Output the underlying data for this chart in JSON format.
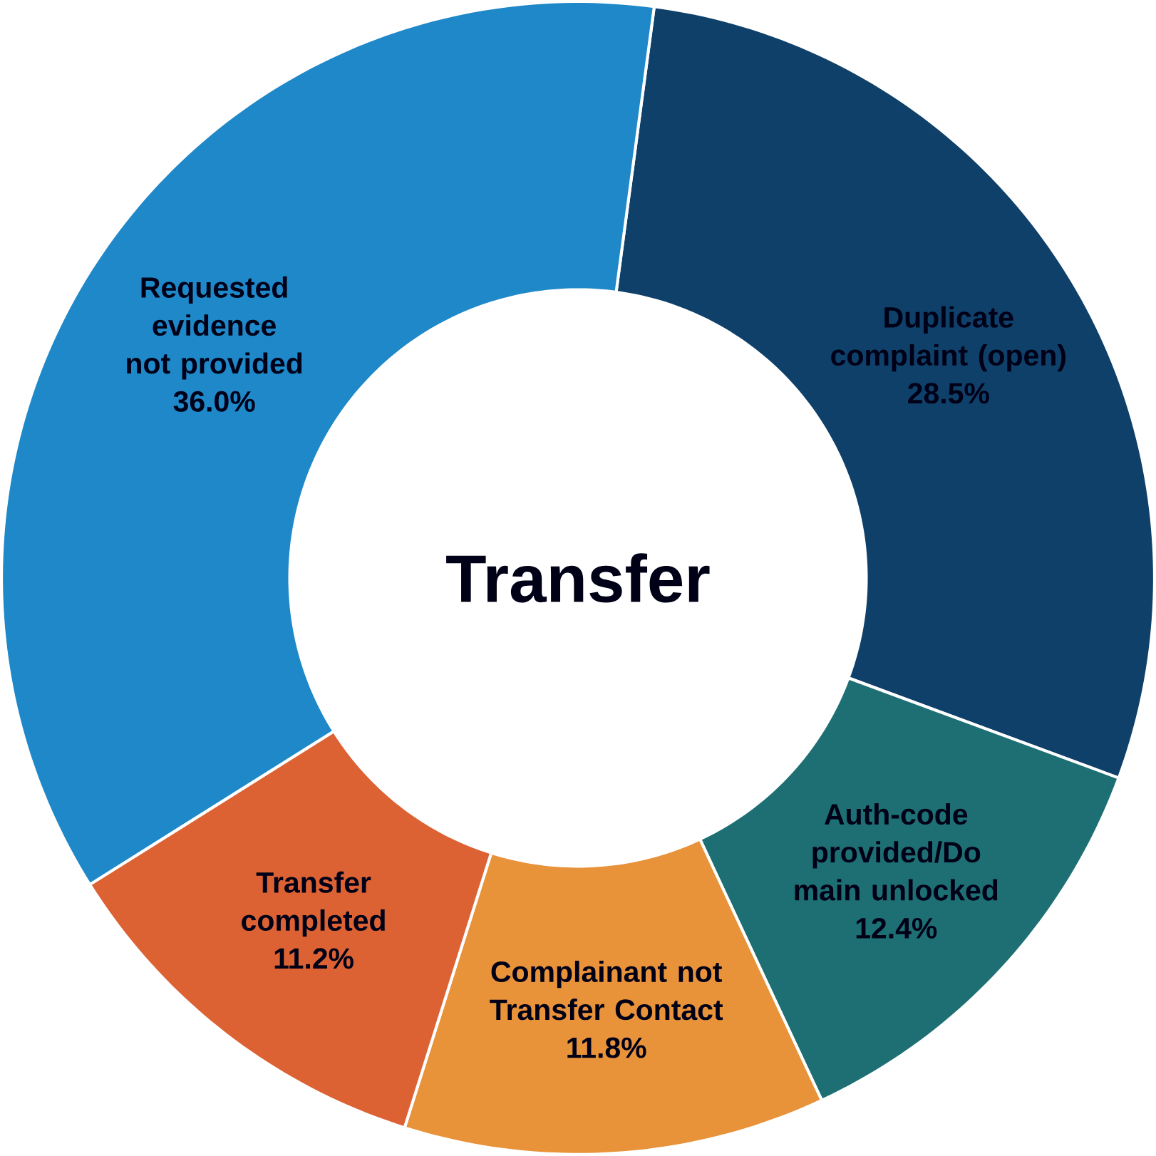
{
  "chart_data": {
    "type": "donut",
    "title": "Transfer",
    "categories": [
      "Duplicate complaint (open)",
      "Auth-code provided/Do main unlocked",
      "Complainant not Transfer Contact",
      "Transfer completed",
      "Requested evidence not provided"
    ],
    "values": [
      28.5,
      12.4,
      11.8,
      11.2,
      36.0
    ],
    "colors": [
      "#0f4069",
      "#1d6f73",
      "#e8923a",
      "#dc6234",
      "#1e88c8"
    ],
    "value_labels": [
      "28.5%",
      "12.4%",
      "11.8%",
      "11.2%",
      "36.0%"
    ]
  }
}
